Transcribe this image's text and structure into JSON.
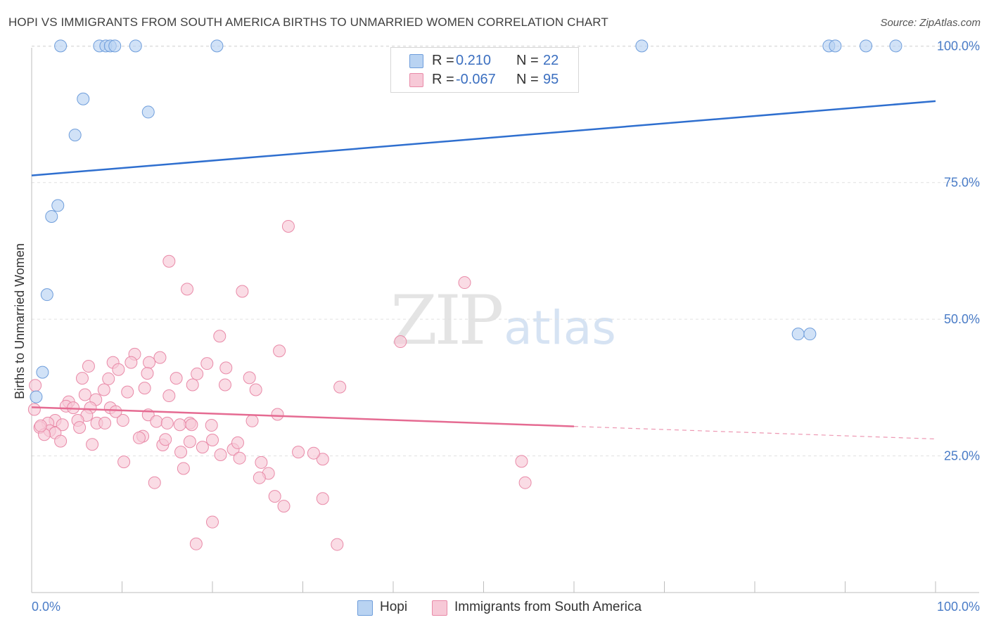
{
  "header": {
    "title": "HOPI VS IMMIGRANTS FROM SOUTH AMERICA BIRTHS TO UNMARRIED WOMEN CORRELATION CHART",
    "source": "Source: ZipAtlas.com"
  },
  "watermark": {
    "zip": "ZIP",
    "atlas": "atlas"
  },
  "legend_top": {
    "rows": [
      {
        "r_label": "R =",
        "r_value": "0.210",
        "n_label": "N =",
        "n_value": "22"
      },
      {
        "r_label": "R =",
        "r_value": "-0.067",
        "n_label": "N =",
        "n_value": "95"
      }
    ]
  },
  "legend_bottom": {
    "hopi": "Hopi",
    "immigrants": "Immigrants from South America"
  },
  "axes": {
    "x_min_label": "0.0%",
    "x_max_label": "100.0%",
    "y_ticks": [
      "100.0%",
      "75.0%",
      "50.0%",
      "25.0%"
    ],
    "ylabel": "Births to Unmarried Women"
  },
  "colors": {
    "hopi_fill": "#b9d3f2",
    "hopi_stroke": "#6e9ddb",
    "hopi_line": "#2f6fcf",
    "imm_fill": "#f7c9d7",
    "imm_stroke": "#e98aa8",
    "imm_line": "#e56b92",
    "tick_text": "#4a7cc7",
    "grid": "#e0e0e0"
  },
  "chart_data": {
    "type": "scatter",
    "title": "HOPI VS IMMIGRANTS FROM SOUTH AMERICA BIRTHS TO UNMARRIED WOMEN CORRELATION CHART",
    "xlabel": "",
    "ylabel": "Births to Unmarried Women",
    "xlim": [
      0,
      100
    ],
    "ylim": [
      0,
      103
    ],
    "y_ticks": [
      25,
      50,
      75,
      100
    ],
    "grid": true,
    "legend_placement": "top-center",
    "series": [
      {
        "name": "Hopi",
        "r": 0.21,
        "n": 22,
        "trend": {
          "x": [
            0,
            100
          ],
          "y": [
            76.3,
            89.9
          ]
        },
        "points": [
          {
            "x": 3.2,
            "y": 100
          },
          {
            "x": 7.5,
            "y": 100
          },
          {
            "x": 8.2,
            "y": 100
          },
          {
            "x": 8.7,
            "y": 100
          },
          {
            "x": 9.2,
            "y": 100
          },
          {
            "x": 11.5,
            "y": 100
          },
          {
            "x": 20.5,
            "y": 100
          },
          {
            "x": 67.5,
            "y": 100
          },
          {
            "x": 88.2,
            "y": 100
          },
          {
            "x": 88.9,
            "y": 100
          },
          {
            "x": 92.3,
            "y": 100
          },
          {
            "x": 95.6,
            "y": 100
          },
          {
            "x": 5.7,
            "y": 90.3
          },
          {
            "x": 12.9,
            "y": 87.9
          },
          {
            "x": 4.8,
            "y": 83.7
          },
          {
            "x": 2.9,
            "y": 70.8
          },
          {
            "x": 2.2,
            "y": 68.8
          },
          {
            "x": 1.7,
            "y": 54.5
          },
          {
            "x": 84.8,
            "y": 47.3
          },
          {
            "x": 86.1,
            "y": 47.3
          },
          {
            "x": 1.2,
            "y": 40.3
          },
          {
            "x": 0.5,
            "y": 35.8
          }
        ]
      },
      {
        "name": "Immigrants from South America",
        "r": -0.067,
        "n": 95,
        "trend": {
          "x": [
            0,
            60
          ],
          "y": [
            33.9,
            30.4
          ]
        },
        "trend_dashed": {
          "x": [
            60,
            100
          ],
          "y": [
            30.4,
            28.1
          ]
        },
        "points": [
          {
            "x": 28.4,
            "y": 67.0
          },
          {
            "x": 15.2,
            "y": 60.6
          },
          {
            "x": 47.9,
            "y": 56.7
          },
          {
            "x": 17.2,
            "y": 55.5
          },
          {
            "x": 23.3,
            "y": 55.1
          },
          {
            "x": 20.8,
            "y": 46.9
          },
          {
            "x": 40.8,
            "y": 45.9
          },
          {
            "x": 27.4,
            "y": 44.2
          },
          {
            "x": 11.4,
            "y": 43.6
          },
          {
            "x": 14.2,
            "y": 43.0
          },
          {
            "x": 9.0,
            "y": 42.1
          },
          {
            "x": 11.0,
            "y": 42.1
          },
          {
            "x": 13.0,
            "y": 42.1
          },
          {
            "x": 19.4,
            "y": 41.9
          },
          {
            "x": 6.3,
            "y": 41.4
          },
          {
            "x": 21.5,
            "y": 41.1
          },
          {
            "x": 9.6,
            "y": 40.8
          },
          {
            "x": 12.8,
            "y": 40.1
          },
          {
            "x": 18.3,
            "y": 40.0
          },
          {
            "x": 8.5,
            "y": 39.1
          },
          {
            "x": 5.6,
            "y": 39.2
          },
          {
            "x": 16.0,
            "y": 39.2
          },
          {
            "x": 24.1,
            "y": 39.3
          },
          {
            "x": 17.8,
            "y": 38.0
          },
          {
            "x": 21.4,
            "y": 38.0
          },
          {
            "x": 34.1,
            "y": 37.6
          },
          {
            "x": 12.5,
            "y": 37.4
          },
          {
            "x": 8.0,
            "y": 37.1
          },
          {
            "x": 10.6,
            "y": 36.7
          },
          {
            "x": 24.8,
            "y": 37.1
          },
          {
            "x": 5.9,
            "y": 36.2
          },
          {
            "x": 15.2,
            "y": 36.0
          },
          {
            "x": 7.1,
            "y": 35.3
          },
          {
            "x": 4.1,
            "y": 34.9
          },
          {
            "x": 3.8,
            "y": 34.1
          },
          {
            "x": 4.6,
            "y": 33.8
          },
          {
            "x": 6.5,
            "y": 33.8
          },
          {
            "x": 8.7,
            "y": 33.8
          },
          {
            "x": 12.9,
            "y": 32.5
          },
          {
            "x": 27.2,
            "y": 32.6
          },
          {
            "x": 6.1,
            "y": 32.4
          },
          {
            "x": 13.8,
            "y": 31.3
          },
          {
            "x": 10.1,
            "y": 31.5
          },
          {
            "x": 5.1,
            "y": 31.5
          },
          {
            "x": 7.2,
            "y": 31.0
          },
          {
            "x": 8.1,
            "y": 31.0
          },
          {
            "x": 15.0,
            "y": 31.0
          },
          {
            "x": 17.5,
            "y": 31.0
          },
          {
            "x": 24.4,
            "y": 31.4
          },
          {
            "x": 16.4,
            "y": 30.7
          },
          {
            "x": 17.7,
            "y": 30.7
          },
          {
            "x": 2.6,
            "y": 31.5
          },
          {
            "x": 1.8,
            "y": 31.0
          },
          {
            "x": 3.4,
            "y": 30.7
          },
          {
            "x": 0.9,
            "y": 30.2
          },
          {
            "x": 5.3,
            "y": 30.2
          },
          {
            "x": 2.0,
            "y": 29.6
          },
          {
            "x": 2.6,
            "y": 29.2
          },
          {
            "x": 1.4,
            "y": 28.9
          },
          {
            "x": 12.3,
            "y": 28.6
          },
          {
            "x": 11.9,
            "y": 28.3
          },
          {
            "x": 20.0,
            "y": 27.9
          },
          {
            "x": 3.2,
            "y": 27.7
          },
          {
            "x": 17.5,
            "y": 27.6
          },
          {
            "x": 6.7,
            "y": 27.1
          },
          {
            "x": 14.5,
            "y": 27.0
          },
          {
            "x": 18.9,
            "y": 26.6
          },
          {
            "x": 22.3,
            "y": 26.2
          },
          {
            "x": 16.5,
            "y": 25.7
          },
          {
            "x": 29.5,
            "y": 25.7
          },
          {
            "x": 20.9,
            "y": 25.2
          },
          {
            "x": 23.0,
            "y": 24.6
          },
          {
            "x": 10.2,
            "y": 23.9
          },
          {
            "x": 32.2,
            "y": 24.4
          },
          {
            "x": 25.4,
            "y": 23.8
          },
          {
            "x": 54.2,
            "y": 24.0
          },
          {
            "x": 16.8,
            "y": 22.7
          },
          {
            "x": 26.2,
            "y": 21.8
          },
          {
            "x": 25.2,
            "y": 21.0
          },
          {
            "x": 13.6,
            "y": 20.1
          },
          {
            "x": 54.6,
            "y": 20.1
          },
          {
            "x": 26.9,
            "y": 17.6
          },
          {
            "x": 32.2,
            "y": 17.2
          },
          {
            "x": 27.9,
            "y": 15.8
          },
          {
            "x": 20.0,
            "y": 12.9
          },
          {
            "x": 18.2,
            "y": 8.9
          },
          {
            "x": 33.8,
            "y": 8.8
          },
          {
            "x": 0.4,
            "y": 37.9
          },
          {
            "x": 0.3,
            "y": 33.5
          },
          {
            "x": 1.0,
            "y": 30.5
          },
          {
            "x": 14.8,
            "y": 28.0
          },
          {
            "x": 19.9,
            "y": 30.6
          },
          {
            "x": 22.8,
            "y": 27.4
          },
          {
            "x": 31.2,
            "y": 25.5
          },
          {
            "x": 9.3,
            "y": 33.1
          }
        ]
      }
    ]
  }
}
